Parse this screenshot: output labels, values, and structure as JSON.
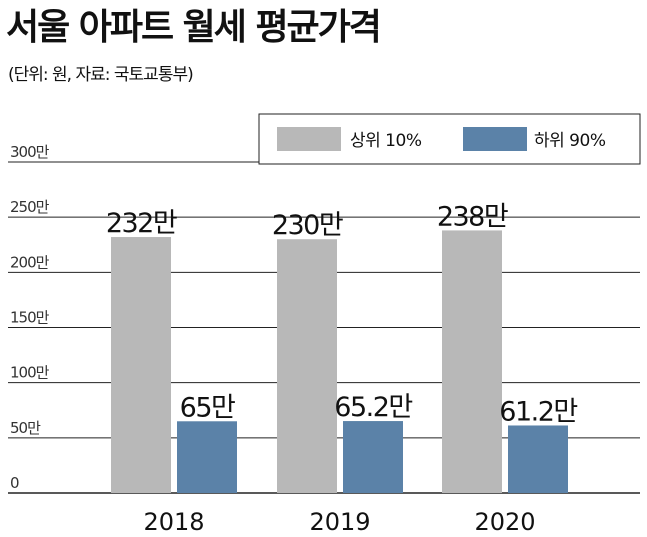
{
  "title": "서울 아파트 월세 평균가격",
  "subtitle": "(단위: 원, 자료: 국토교통부)",
  "colors": {
    "top10": "#b8b8b8",
    "bottom90": "#5b82a8",
    "grid": "#222222"
  },
  "chart_data": {
    "type": "bar",
    "title": "서울 아파트 월세 평균가격",
    "categories": [
      "2018",
      "2019",
      "2020"
    ],
    "series": [
      {
        "name": "상위 10%",
        "values": [
          232,
          230,
          238
        ],
        "labels": [
          "232만",
          "230만",
          "238만"
        ]
      },
      {
        "name": "하위 90%",
        "values": [
          65,
          65.2,
          61.2
        ],
        "labels": [
          "65만",
          "65.2만",
          "61.2만"
        ]
      }
    ],
    "yticks": [
      "0",
      "50만",
      "100만",
      "150만",
      "200만",
      "250만",
      "300만"
    ],
    "ylim": [
      0,
      300
    ],
    "grid": true,
    "legend": "top-right",
    "xlabel": "",
    "ylabel": ""
  }
}
